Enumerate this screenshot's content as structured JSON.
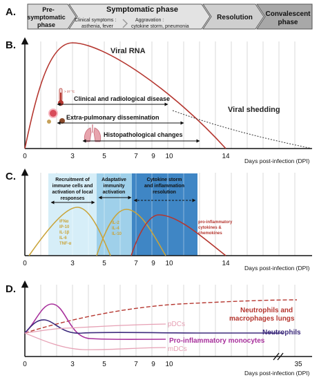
{
  "panel_labels": {
    "a": "A.",
    "b": "B.",
    "c": "C.",
    "d": "D."
  },
  "phases": {
    "pre": [
      "Pre-",
      "symptomatic",
      "phase"
    ],
    "symptomatic": "Symptomatic phase",
    "clinical": [
      "Clinical symptoms :",
      "asthenia, fever"
    ],
    "aggravation": [
      "Aggravation :",
      "cytokine storm, pneumonia"
    ],
    "resolution": "Resolution",
    "convalescent": [
      "Convalescent",
      "phase"
    ]
  },
  "axis": {
    "x_label": "Days post-infection (DPI)",
    "ticks_b": [
      "0",
      "3",
      "5",
      "7",
      "9",
      "10",
      "14"
    ],
    "ticks_c": [
      "0",
      "3",
      "5",
      "7",
      "9",
      "10",
      "14"
    ],
    "ticks_d": [
      "0",
      "3",
      "5",
      "7",
      "9",
      "10",
      "35"
    ]
  },
  "panel_b": {
    "viral_rna": "Viral RNA",
    "viral_shedding": "Viral shedding",
    "clinical_disease": "Clinical and radiological disease",
    "extra_pulmonary": "Extra-pulmonary dissemination",
    "histopathology": "Histopathological changes",
    "thermometer": "> 37 °C"
  },
  "panel_c": {
    "box1": [
      "Recruitment of",
      "immune cells and",
      "activation of local",
      "responses"
    ],
    "box2": [
      "Adaptative",
      "immunity",
      "activation"
    ],
    "box3": [
      "Cytokine storm",
      "and inflammation",
      "resolution"
    ],
    "cyt1": [
      "IFNα",
      "IP-10",
      "IL-1β",
      "IL-6",
      "TNF-α"
    ],
    "cyt2": [
      "IL-2",
      "IL-4",
      "IL-10"
    ],
    "cyt3": [
      "pro-inflammatory",
      "cytokines &",
      "chemokines"
    ]
  },
  "panel_d": {
    "neut_macro": [
      "Neutrophils and",
      "macrophages lungs"
    ],
    "neutrophils": "Neutrophils",
    "pdcs": "pDCs",
    "monocytes": "Pro-inflammatory monocytes",
    "mdcs": "mDCs"
  },
  "colors": {
    "red": "#b5362f",
    "olive": "#c9a43a",
    "magenta": "#a8309c",
    "navy": "#3c2a7c",
    "pink": "#e6a0b4",
    "box_light": "#d6eef8",
    "box_mid": "#9fd0ea",
    "box_dark": "#3f86c5"
  }
}
